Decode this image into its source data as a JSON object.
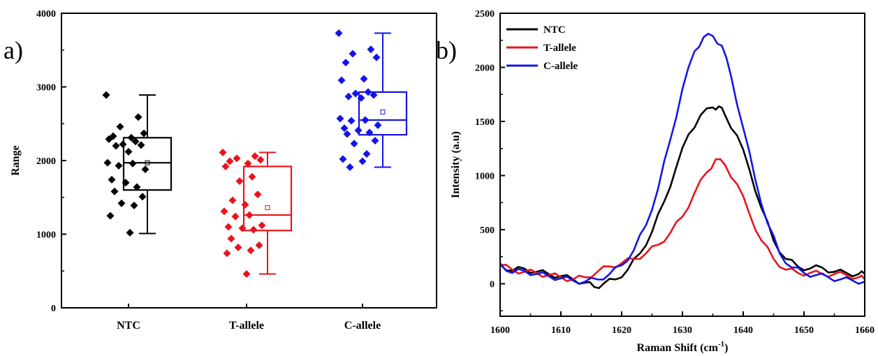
{
  "chart_data": [
    {
      "type": "box",
      "panel_label": "a)",
      "xlabel": "",
      "ylabel": "Range",
      "ylim": [
        0,
        4000
      ],
      "yticks": [
        0,
        1000,
        2000,
        3000,
        4000
      ],
      "categories": [
        "NTC",
        "T-allele",
        "C-allele"
      ],
      "colors": [
        "#000000",
        "#e8141b",
        "#1414e6"
      ],
      "groups": [
        {
          "name": "NTC",
          "points": [
            2890,
            2590,
            2460,
            2370,
            2330,
            2310,
            2290,
            2260,
            2220,
            2210,
            2200,
            2120,
            1970,
            1960,
            1930,
            1880,
            1740,
            1700,
            1640,
            1580,
            1510,
            1420,
            1390,
            1250,
            1020
          ],
          "box": {
            "whisker_low": 1010,
            "q1": 1600,
            "median": 1970,
            "mean": 1970,
            "q3": 2310,
            "whisker_high": 2890
          }
        },
        {
          "name": "T-allele",
          "points": [
            2110,
            2060,
            2030,
            2010,
            1990,
            1960,
            1920,
            1780,
            1720,
            1540,
            1460,
            1400,
            1310,
            1260,
            1240,
            1120,
            1100,
            1080,
            1060,
            940,
            850,
            820,
            780,
            740,
            460
          ],
          "box": {
            "whisker_low": 460,
            "q1": 1050,
            "median": 1260,
            "mean": 1360,
            "q3": 1920,
            "whisker_high": 2110
          }
        },
        {
          "name": "C-allele",
          "points": [
            3730,
            3510,
            3450,
            3400,
            3330,
            3110,
            3090,
            2930,
            2910,
            2890,
            2870,
            2850,
            2570,
            2550,
            2540,
            2480,
            2440,
            2410,
            2380,
            2360,
            2270,
            2230,
            2090,
            2020,
            1990,
            1910
          ],
          "box": {
            "whisker_low": 1910,
            "q1": 2350,
            "median": 2550,
            "mean": 2660,
            "q3": 2930,
            "whisker_high": 3730
          }
        }
      ]
    },
    {
      "type": "line",
      "panel_label": "b)",
      "xlabel_main": "Raman Shift (cm",
      "xlabel_sup": "-1",
      "xlabel_end": ")",
      "ylabel": "Intensity (a.u)",
      "xlim": [
        1600,
        1660
      ],
      "ylim": [
        -300,
        2500
      ],
      "xticks": [
        1600,
        1610,
        1620,
        1630,
        1640,
        1650,
        1660
      ],
      "yticks": [
        0,
        500,
        1000,
        1500,
        2000,
        2500
      ],
      "legend": "top-left",
      "series": [
        {
          "name": "NTC",
          "color": "#000000",
          "x": [
            1600,
            1602,
            1604,
            1606,
            1608,
            1610,
            1612,
            1614,
            1615.5,
            1617,
            1619,
            1621,
            1623,
            1625,
            1627,
            1629,
            1631,
            1633,
            1635,
            1636,
            1637,
            1639,
            1641,
            1643,
            1645,
            1647,
            1649,
            1651,
            1653,
            1655,
            1657,
            1659,
            1660
          ],
          "y": [
            180,
            120,
            140,
            110,
            90,
            70,
            40,
            10,
            -30,
            0,
            40,
            130,
            280,
            480,
            760,
            1080,
            1380,
            1560,
            1630,
            1640,
            1560,
            1370,
            1060,
            700,
            400,
            230,
            160,
            140,
            150,
            110,
            100,
            90,
            90
          ]
        },
        {
          "name": "T-allele",
          "color": "#e8141b",
          "x": [
            1600,
            1602,
            1604,
            1606,
            1608,
            1610,
            1612,
            1614,
            1616,
            1618,
            1620,
            1622,
            1624,
            1626,
            1628,
            1630,
            1632,
            1634,
            1635.5,
            1637,
            1639,
            1641,
            1643,
            1645,
            1647,
            1649,
            1651,
            1653,
            1655,
            1657,
            1659,
            1660
          ],
          "y": [
            170,
            130,
            110,
            100,
            80,
            60,
            40,
            60,
            110,
            160,
            190,
            230,
            280,
            360,
            470,
            620,
            840,
            1030,
            1150,
            1100,
            920,
            650,
            400,
            230,
            130,
            100,
            100,
            90,
            90,
            80,
            60,
            40
          ]
        },
        {
          "name": "C-allele",
          "color": "#1414e6",
          "x": [
            1600,
            1602,
            1604,
            1606,
            1608,
            1610,
            1612,
            1614,
            1616,
            1618,
            1620,
            1622,
            1624,
            1626,
            1628,
            1630,
            1632,
            1633.5,
            1635,
            1636.5,
            1638,
            1640,
            1642,
            1644,
            1646,
            1648,
            1650,
            1652,
            1654,
            1656,
            1658,
            1660
          ],
          "y": [
            190,
            100,
            120,
            90,
            70,
            50,
            30,
            20,
            40,
            90,
            170,
            310,
            540,
            880,
            1330,
            1800,
            2150,
            2280,
            2290,
            2200,
            1920,
            1440,
            960,
            560,
            280,
            150,
            100,
            80,
            60,
            40,
            30,
            20
          ]
        }
      ]
    }
  ]
}
